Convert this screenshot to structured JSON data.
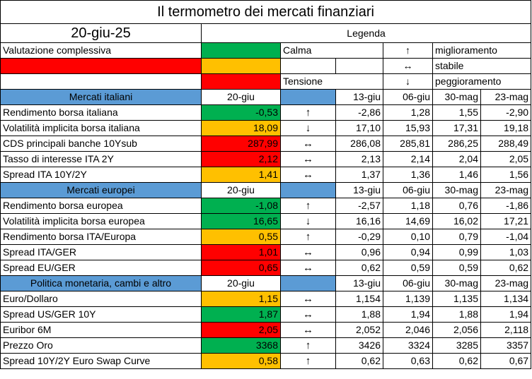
{
  "title": "Il termometro dei mercati finanziari",
  "date": "20-giu-25",
  "legend": {
    "header": "Legenda",
    "overall_label": "Valutazione complessiva",
    "calm": "Calma",
    "tension": "Tensione",
    "up_symbol": "↑",
    "stable_symbol": "↔",
    "down_symbol": "↓",
    "up_text": "miglioramento",
    "stable_text": "stabile",
    "down_text": "peggioramento"
  },
  "colors": {
    "green": "#00b050",
    "yellow": "#ffc000",
    "red": "#ff0000",
    "section": "#5b9bd5"
  },
  "columns": [
    "20-giu",
    "13-giu",
    "06-giu",
    "30-mag",
    "23-mag"
  ],
  "sections": [
    {
      "name": "Mercati italiani",
      "rows": [
        {
          "label": "Rendimento borsa italiana",
          "current": "-0,53",
          "status": "green",
          "trend": "↑",
          "history": [
            "-2,86",
            "1,28",
            "1,55",
            "-2,90"
          ]
        },
        {
          "label": "Volatilità implicita borsa italiana",
          "current": "18,09",
          "status": "yellow",
          "trend": "↓",
          "history": [
            "17,10",
            "15,93",
            "17,31",
            "19,18"
          ]
        },
        {
          "label": "CDS principali banche 10Ysub",
          "current": "287,99",
          "status": "red",
          "trend": "↔",
          "history": [
            "286,08",
            "285,81",
            "286,25",
            "288,49"
          ]
        },
        {
          "label": "Tasso di interesse ITA 2Y",
          "current": "2,12",
          "status": "red",
          "trend": "↔",
          "history": [
            "2,13",
            "2,14",
            "2,04",
            "2,05"
          ]
        },
        {
          "label": "Spread ITA 10Y/2Y",
          "current": "1,41",
          "status": "yellow",
          "trend": "↔",
          "history": [
            "1,37",
            "1,36",
            "1,46",
            "1,56"
          ]
        }
      ]
    },
    {
      "name": "Mercati europei",
      "rows": [
        {
          "label": "Rendimento borsa europea",
          "current": "-1,08",
          "status": "green",
          "trend": "↑",
          "history": [
            "-2,57",
            "1,18",
            "0,76",
            "-1,86"
          ]
        },
        {
          "label": "Volatilità implicita borsa europea",
          "current": "16,65",
          "status": "green",
          "trend": "↓",
          "history": [
            "16,16",
            "14,69",
            "16,02",
            "17,21"
          ]
        },
        {
          "label": "Rendimento borsa ITA/Europa",
          "current": "0,55",
          "status": "yellow",
          "trend": "↑",
          "history": [
            "-0,29",
            "0,10",
            "0,79",
            "-1,04"
          ]
        },
        {
          "label": "Spread ITA/GER",
          "current": "1,01",
          "status": "red",
          "trend": "↔",
          "history": [
            "0,96",
            "0,94",
            "0,99",
            "1,03"
          ]
        },
        {
          "label": "Spread EU/GER",
          "current": "0,65",
          "status": "red",
          "trend": "↔",
          "history": [
            "0,62",
            "0,59",
            "0,59",
            "0,62"
          ]
        }
      ]
    },
    {
      "name": "Politica monetaria, cambi e altro",
      "rows": [
        {
          "label": "Euro/Dollaro",
          "current": "1,15",
          "status": "yellow",
          "trend": "↔",
          "history": [
            "1,154",
            "1,139",
            "1,135",
            "1,134"
          ]
        },
        {
          "label": "Spread US/GER 10Y",
          "current": "1,87",
          "status": "green",
          "trend": "↔",
          "history": [
            "1,88",
            "1,94",
            "1,88",
            "1,94"
          ]
        },
        {
          "label": "Euribor 6M",
          "current": "2,05",
          "status": "red",
          "trend": "↔",
          "history": [
            "2,052",
            "2,046",
            "2,056",
            "2,118"
          ]
        },
        {
          "label": "Prezzo Oro",
          "current": "3368",
          "status": "green",
          "trend": "↑",
          "history": [
            "3426",
            "3324",
            "3285",
            "3357"
          ]
        },
        {
          "label": "Spread 10Y/2Y Euro Swap Curve",
          "current": "0,58",
          "status": "yellow",
          "trend": "↑",
          "history": [
            "0,62",
            "0,63",
            "0,62",
            "0,67"
          ]
        }
      ]
    }
  ]
}
